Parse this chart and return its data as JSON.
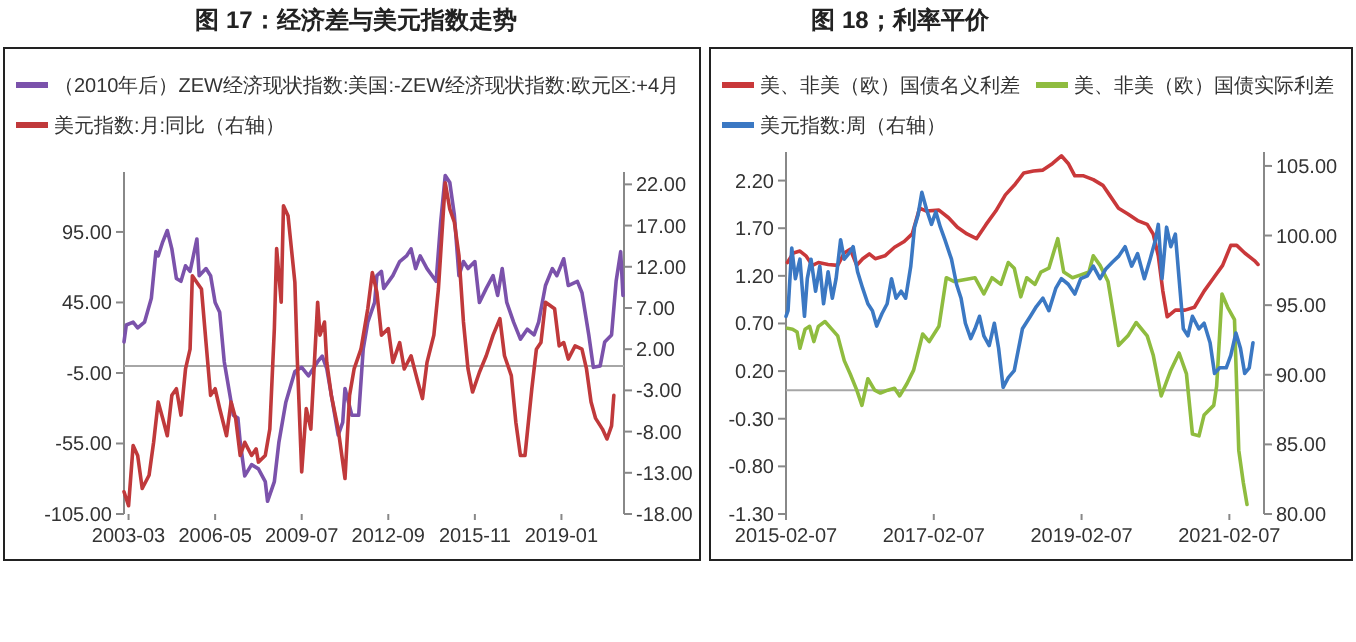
{
  "chart_data": [
    {
      "type": "line",
      "title": "图 17：经济差与美元指数走势",
      "legend": "top",
      "xlim": [
        "2003-01",
        "2021-04-15"
      ],
      "ylim": [
        -105,
        137.5
      ],
      "y2lim": [
        -18,
        23.5
      ],
      "xticks": [
        "2003-03",
        "2006-05",
        "2009-07",
        "2012-09",
        "2015-11",
        "2019-01"
      ],
      "yticks": [
        {
          "value": -105,
          "label": "-105.00"
        },
        {
          "value": -55,
          "label": "-55.00"
        },
        {
          "value": -5,
          "label": "-5.00"
        },
        {
          "value": 45,
          "label": "45.00"
        },
        {
          "value": 95,
          "label": "95.00"
        }
      ],
      "y2ticks": [
        {
          "value": -18,
          "label": "-18.00"
        },
        {
          "value": -13,
          "label": "-13.00"
        },
        {
          "value": -8,
          "label": "-8.00"
        },
        {
          "value": -3,
          "label": "-3.00"
        },
        {
          "value": 2,
          "label": "2.00"
        },
        {
          "value": 7,
          "label": "7.00"
        },
        {
          "value": 12,
          "label": "12.00"
        },
        {
          "value": 17,
          "label": "17.00"
        },
        {
          "value": 22,
          "label": "22.00"
        }
      ],
      "ref_lines": [
        {
          "axis": "y",
          "value": 0,
          "color": "#a6a6a6"
        }
      ],
      "series": [
        {
          "name": "（2010年后）ZEW经济现状指数:美国:-ZEW经济现状指数:欧元区:+4月",
          "color": "#7b52ab",
          "x": [
            "2003-01",
            "2003-02",
            "2003-05",
            "2003-07",
            "2003-10",
            "2004-01",
            "2004-03",
            "2004-04",
            "2004-06",
            "2004-08",
            "2004-10",
            "2004-12",
            "2005-02",
            "2005-04",
            "2005-06",
            "2005-09",
            "2005-10",
            "2006-01",
            "2006-03",
            "2006-05",
            "2006-07",
            "2006-09",
            "2006-11",
            "2007-01",
            "2007-03",
            "2007-04",
            "2007-06",
            "2007-09",
            "2007-12",
            "2008-03",
            "2008-04",
            "2008-07",
            "2008-09",
            "2008-12",
            "2009-04",
            "2009-07",
            "2009-10",
            "2010-02",
            "2010-04",
            "2010-06",
            "2010-09",
            "2010-11",
            "2011-01",
            "2011-02",
            "2011-05",
            "2011-08",
            "2011-10",
            "2011-12",
            "2012-03",
            "2012-04",
            "2012-06",
            "2012-07",
            "2012-11",
            "2013-02",
            "2013-05",
            "2013-07",
            "2013-09",
            "2013-11",
            "2014-02",
            "2014-06",
            "2014-08",
            "2014-10",
            "2014-12",
            "2015-02",
            "2015-04",
            "2015-06",
            "2015-08",
            "2015-11",
            "2016-01",
            "2016-04",
            "2016-07",
            "2016-09",
            "2016-11",
            "2017-01",
            "2017-04",
            "2017-07",
            "2017-10",
            "2018-01",
            "2018-03",
            "2018-06",
            "2018-09",
            "2018-11",
            "2019-02",
            "2019-04",
            "2019-08",
            "2019-10",
            "2020-01",
            "2020-03",
            "2020-06",
            "2020-08",
            "2020-11",
            "2021-01",
            "2021-03",
            "2021-04"
          ],
          "values": [
            17,
            29,
            31,
            27,
            31,
            48,
            81,
            78,
            88,
            96,
            83,
            62,
            60,
            71,
            67,
            90,
            64,
            69,
            64,
            45,
            38,
            3,
            -16,
            -35,
            -37,
            -54,
            -78,
            -70,
            -73,
            -82,
            -96,
            -82,
            -54,
            -26,
            -4,
            -1,
            -7,
            3,
            7,
            -2,
            -30,
            -49,
            -40,
            -16,
            -35,
            -35,
            12,
            31,
            45,
            64,
            67,
            55,
            64,
            74,
            78,
            83,
            69,
            78,
            69,
            60,
            102,
            135,
            130,
            107,
            64,
            74,
            69,
            74,
            45,
            55,
            64,
            50,
            69,
            45,
            31,
            19,
            26,
            22,
            31,
            57,
            69,
            64,
            76,
            57,
            60,
            52,
            22,
            -1,
            0,
            17,
            22,
            60,
            81,
            50
          ]
        },
        {
          "name": "美元指数:月:同比（右轴）",
          "color": "#c0393b",
          "axis": "y2",
          "x": [
            "2003-01",
            "2003-03",
            "2003-05",
            "2003-07",
            "2003-09",
            "2003-12",
            "2004-02",
            "2004-04",
            "2004-06",
            "2004-08",
            "2004-10",
            "2004-12",
            "2005-02",
            "2005-04",
            "2005-06",
            "2005-07",
            "2005-09",
            "2005-11",
            "2006-01",
            "2006-03",
            "2006-05",
            "2006-07",
            "2006-10",
            "2006-12",
            "2007-02",
            "2007-04",
            "2007-06",
            "2007-09",
            "2007-11",
            "2007-12",
            "2008-03",
            "2008-05",
            "2008-07",
            "2008-08",
            "2008-10",
            "2008-11",
            "2009-01",
            "2009-04",
            "2009-05",
            "2009-07",
            "2009-09",
            "2009-11",
            "2010-02",
            "2010-03",
            "2010-05",
            "2010-06",
            "2010-08",
            "2010-11",
            "2011-02",
            "2011-04",
            "2011-06",
            "2011-09",
            "2011-12",
            "2012-02",
            "2012-04",
            "2012-06",
            "2012-09",
            "2012-11",
            "2013-02",
            "2013-04",
            "2013-07",
            "2013-10",
            "2013-12",
            "2014-02",
            "2014-05",
            "2014-07",
            "2014-10",
            "2014-12",
            "2015-02",
            "2015-04",
            "2015-06",
            "2015-08",
            "2015-10",
            "2016-01",
            "2016-04",
            "2016-07",
            "2016-10",
            "2016-12",
            "2017-03",
            "2017-05",
            "2017-07",
            "2017-09",
            "2017-12",
            "2018-02",
            "2018-04",
            "2018-06",
            "2018-10",
            "2018-12",
            "2019-02",
            "2019-04",
            "2019-07",
            "2019-10",
            "2019-12",
            "2020-02",
            "2020-04",
            "2020-07",
            "2020-09",
            "2020-11",
            "2020-12"
          ],
          "values": [
            -15.3,
            -17,
            -9.7,
            -10.9,
            -14.9,
            -13.3,
            -9.3,
            -4.4,
            -6.4,
            -8.5,
            -3.6,
            -2.8,
            -6,
            -0.4,
            2,
            10.9,
            10.1,
            9.3,
            2.8,
            -3.6,
            -2.8,
            -5.2,
            -8.5,
            -4.4,
            -6.4,
            -10.9,
            -9.3,
            -10.9,
            -10.1,
            -11.7,
            -10.9,
            -7.7,
            4.5,
            14.2,
            7.7,
            19.4,
            18.2,
            10.1,
            1.2,
            -12.9,
            -5.2,
            -7.7,
            7.7,
            3.7,
            5.3,
            0.4,
            -3.6,
            -7.7,
            -13.7,
            -3.6,
            -0.4,
            2,
            6.9,
            11.3,
            8.9,
            3.7,
            4.5,
            0.4,
            2.8,
            -0.4,
            1.2,
            -2,
            -4,
            0.4,
            3.7,
            9.3,
            22.2,
            19,
            17.4,
            13.4,
            5.3,
            -0.4,
            -3.2,
            -0.8,
            1.2,
            3.7,
            5.7,
            1.2,
            -1.2,
            -6.9,
            -10.9,
            -10.9,
            -2.8,
            2,
            2.8,
            7.7,
            6.9,
            2.4,
            2.8,
            0.8,
            2.4,
            2,
            -0.4,
            -4.4,
            -6.4,
            -7.7,
            -8.9,
            -7.3,
            -3.6
          ]
        }
      ]
    },
    {
      "type": "line",
      "title": "图 18；利率平价",
      "legend": "top",
      "xlim": [
        "2015-02-07",
        "2021-07-26"
      ],
      "ylim": [
        -1.3,
        2.5
      ],
      "y2lim": [
        80,
        106
      ],
      "xticks": [
        "2015-02-07",
        "2017-02-07",
        "2019-02-07",
        "2021-02-07"
      ],
      "yticks": [
        {
          "value": -1.3,
          "label": "-1.30"
        },
        {
          "value": -0.8,
          "label": "-0.80"
        },
        {
          "value": -0.3,
          "label": "-0.30"
        },
        {
          "value": 0.2,
          "label": "0.20"
        },
        {
          "value": 0.7,
          "label": "0.70"
        },
        {
          "value": 1.2,
          "label": "1.20"
        },
        {
          "value": 1.7,
          "label": "1.70"
        },
        {
          "value": 2.2,
          "label": "2.20"
        }
      ],
      "y2ticks": [
        {
          "value": 80,
          "label": "80.00"
        },
        {
          "value": 85,
          "label": "85.00"
        },
        {
          "value": 90,
          "label": "90.00"
        },
        {
          "value": 95,
          "label": "95.00"
        },
        {
          "value": 100,
          "label": "100.00"
        },
        {
          "value": 105,
          "label": "105.00"
        }
      ],
      "ref_lines": [
        {
          "axis": "y",
          "value": 0,
          "color": "#a6a6a6"
        }
      ],
      "series": [
        {
          "name": "美、非美（欧）国债名义利差",
          "color": "#c9383a",
          "x": [
            "2015-02-14",
            "2015-03-13",
            "2015-04-15",
            "2015-05-14",
            "2015-06-16",
            "2015-07-15",
            "2015-09-02",
            "2015-10-19",
            "2015-11-21",
            "2015-12-20",
            "2016-01-22",
            "2016-02-21",
            "2016-03-23",
            "2016-04-22",
            "2016-06-09",
            "2016-07-26",
            "2016-09-13",
            "2016-10-22",
            "2016-11-28",
            "2017-01-01",
            "2017-03-02",
            "2017-04-19",
            "2017-06-02",
            "2017-07-19",
            "2017-09-05",
            "2017-10-22",
            "2017-12-09",
            "2018-01-26",
            "2018-03-09",
            "2018-04-26",
            "2018-06-13",
            "2018-07-29",
            "2018-09-16",
            "2018-10-29",
            "2018-12-02",
            "2019-01-04",
            "2019-02-17",
            "2019-04-04",
            "2019-05-21",
            "2019-06-23",
            "2019-08-07",
            "2019-09-23",
            "2019-11-10",
            "2019-12-27",
            "2020-01-26",
            "2020-02-21",
            "2020-03-13",
            "2020-04-04",
            "2020-05-14",
            "2020-07-01",
            "2020-08-17",
            "2020-10-04",
            "2020-11-21",
            "2021-01-04",
            "2021-02-14",
            "2021-03-13",
            "2021-04-22",
            "2021-06-09",
            "2021-06-27"
          ],
          "values": [
            1.34,
            1.44,
            1.46,
            1.41,
            1.31,
            1.34,
            1.32,
            1.31,
            1.44,
            1.48,
            1.31,
            1.38,
            1.43,
            1.38,
            1.41,
            1.5,
            1.56,
            1.64,
            1.91,
            1.88,
            1.89,
            1.81,
            1.71,
            1.64,
            1.59,
            1.74,
            1.88,
            2.05,
            2.15,
            2.28,
            2.3,
            2.31,
            2.38,
            2.46,
            2.38,
            2.25,
            2.25,
            2.21,
            2.15,
            2.05,
            1.91,
            1.85,
            1.78,
            1.74,
            1.64,
            1.41,
            1.04,
            0.77,
            0.84,
            0.84,
            0.87,
            1.04,
            1.18,
            1.31,
            1.52,
            1.52,
            1.44,
            1.36,
            1.32
          ]
        },
        {
          "name": "美、非美（欧）国债实际利差",
          "color": "#8fbc3f",
          "x": [
            "2015-02-14",
            "2015-03-09",
            "2015-04-01",
            "2015-04-15",
            "2015-05-10",
            "2015-06-02",
            "2015-06-23",
            "2015-07-15",
            "2015-08-17",
            "2015-09-20",
            "2015-10-19",
            "2015-11-21",
            "2015-12-20",
            "2016-01-22",
            "2016-02-17",
            "2016-03-16",
            "2016-04-19",
            "2016-05-17",
            "2016-06-23",
            "2016-07-26",
            "2016-08-21",
            "2016-09-27",
            "2016-10-29",
            "2016-12-13",
            "2017-01-15",
            "2017-03-02",
            "2017-04-08",
            "2017-05-17",
            "2017-07-04",
            "2017-08-28",
            "2017-10-11",
            "2017-11-21",
            "2018-01-04",
            "2018-02-10",
            "2018-03-09",
            "2018-04-11",
            "2018-05-10",
            "2018-06-20",
            "2018-07-19",
            "2018-08-28",
            "2018-10-11",
            "2018-11-10",
            "2018-12-23",
            "2019-02-03",
            "2019-03-13",
            "2019-04-04",
            "2019-05-07",
            "2019-06-16",
            "2019-08-07",
            "2019-09-23",
            "2019-11-03",
            "2019-12-27",
            "2020-01-26",
            "2020-03-05",
            "2020-04-22",
            "2020-06-02",
            "2020-07-08",
            "2020-08-07",
            "2020-09-09",
            "2020-10-04",
            "2020-11-21",
            "2020-12-05",
            "2021-01-01",
            "2021-01-29",
            "2021-03-02",
            "2021-03-23",
            "2021-04-15",
            "2021-05-03"
          ],
          "values": [
            0.65,
            0.64,
            0.61,
            0.44,
            0.64,
            0.67,
            0.51,
            0.67,
            0.72,
            0.64,
            0.57,
            0.31,
            0.17,
            0.0,
            -0.16,
            0.12,
            0.0,
            -0.03,
            0.0,
            0.02,
            -0.06,
            0.07,
            0.21,
            0.59,
            0.51,
            0.67,
            1.18,
            1.14,
            1.16,
            1.18,
            1.01,
            1.18,
            1.11,
            1.34,
            1.28,
            0.98,
            1.18,
            1.11,
            1.24,
            1.28,
            1.59,
            1.24,
            1.18,
            1.21,
            1.24,
            1.41,
            1.31,
            1.14,
            0.47,
            0.57,
            0.71,
            0.57,
            0.37,
            -0.06,
            0.21,
            0.39,
            0.17,
            -0.46,
            -0.48,
            -0.26,
            -0.16,
            0.04,
            1.01,
            0.87,
            0.74,
            -0.63,
            -0.97,
            -1.2
          ]
        },
        {
          "name": "美元指数:周（右轴）",
          "color": "#3b78c3",
          "axis": "y2",
          "x": [
            "2015-02-07",
            "2015-02-17",
            "2015-03-05",
            "2015-03-23",
            "2015-04-15",
            "2015-05-07",
            "2015-05-21",
            "2015-06-09",
            "2015-07-01",
            "2015-07-22",
            "2015-08-10",
            "2015-09-02",
            "2015-09-23",
            "2015-10-11",
            "2015-11-03",
            "2015-11-21",
            "2015-12-13",
            "2016-01-04",
            "2016-01-26",
            "2016-02-21",
            "2016-03-16",
            "2016-04-08",
            "2016-04-29",
            "2016-05-25",
            "2016-06-20",
            "2016-07-11",
            "2016-08-03",
            "2016-08-28",
            "2016-09-20",
            "2016-10-15",
            "2016-11-03",
            "2016-11-21",
            "2016-12-09",
            "2017-01-01",
            "2017-01-26",
            "2017-02-17",
            "2017-03-09",
            "2017-04-01",
            "2017-05-03",
            "2017-05-28",
            "2017-06-20",
            "2017-07-11",
            "2017-08-07",
            "2017-08-28",
            "2017-09-20",
            "2017-10-11",
            "2017-11-07",
            "2017-12-02",
            "2017-12-23",
            "2018-01-15",
            "2018-02-10",
            "2018-03-09",
            "2018-04-19",
            "2018-05-28",
            "2018-06-27",
            "2018-07-29",
            "2018-08-28",
            "2018-10-01",
            "2018-10-29",
            "2018-12-02",
            "2019-01-04",
            "2019-02-03",
            "2019-03-05",
            "2019-04-04",
            "2019-05-07",
            "2019-06-05",
            "2019-07-08",
            "2019-08-07",
            "2019-09-09",
            "2019-10-11",
            "2019-11-10",
            "2019-12-13",
            "2020-01-11",
            "2020-02-07",
            "2020-02-21",
            "2020-03-09",
            "2020-04-01",
            "2020-04-22",
            "2020-05-14",
            "2020-06-02",
            "2020-06-23",
            "2020-07-15",
            "2020-08-07",
            "2020-09-09",
            "2020-10-04",
            "2020-11-03",
            "2020-11-25",
            "2020-12-20",
            "2021-01-22",
            "2021-02-14",
            "2021-03-09",
            "2021-04-01",
            "2021-04-22",
            "2021-05-14",
            "2021-06-02"
          ],
          "values": [
            94.2,
            94.6,
            99.1,
            96.9,
            98.3,
            94.2,
            96.9,
            98.3,
            96.0,
            97.8,
            95.1,
            97.4,
            95.5,
            96.9,
            99.7,
            98.3,
            98.7,
            99.2,
            97.4,
            96.2,
            95.1,
            94.6,
            93.5,
            94.4,
            95.1,
            96.9,
            95.5,
            96.0,
            95.5,
            97.8,
            100.6,
            101.5,
            103.1,
            101.9,
            100.8,
            101.7,
            100.6,
            99.7,
            98.3,
            96.5,
            95.5,
            93.7,
            92.6,
            93.3,
            94.2,
            92.8,
            92.1,
            93.7,
            91.9,
            89.1,
            89.8,
            90.3,
            93.3,
            94.2,
            94.9,
            95.5,
            94.6,
            96.2,
            96.9,
            96.5,
            95.8,
            96.9,
            97.1,
            97.8,
            96.9,
            97.6,
            98.1,
            98.5,
            99.2,
            97.8,
            98.7,
            96.9,
            98.3,
            99.7,
            100.8,
            96.9,
            100.6,
            99.2,
            100.1,
            96.9,
            93.3,
            92.8,
            94.2,
            93.3,
            93.7,
            92.3,
            90.1,
            90.5,
            90.5,
            91.4,
            93.0,
            91.9,
            90.1,
            90.5,
            92.3
          ]
        }
      ]
    }
  ]
}
